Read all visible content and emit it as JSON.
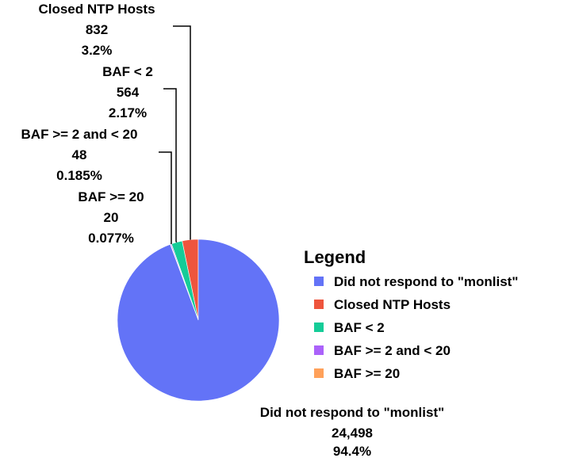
{
  "chart_data": {
    "type": "pie",
    "legend_title": "Legend",
    "legend_position": "right",
    "slices": [
      {
        "name": "Did not respond to \"monlist\"",
        "value": 24498,
        "value_label": "24,498",
        "percent_label": "94.4%",
        "color": "#6373f7"
      },
      {
        "name": "Closed NTP Hosts",
        "value": 832,
        "value_label": "832",
        "percent_label": "3.2%",
        "color": "#ee553d"
      },
      {
        "name": "BAF < 2",
        "value": 564,
        "value_label": "564",
        "percent_label": "2.17%",
        "color": "#15cc98"
      },
      {
        "name": "BAF >= 2 and < 20",
        "value": 48,
        "value_label": "48",
        "percent_label": "0.185%",
        "color": "#ab62fa"
      },
      {
        "name": "BAF >= 20",
        "value": 20,
        "value_label": "20",
        "percent_label": "0.077%",
        "color": "#ffa15a"
      }
    ]
  }
}
